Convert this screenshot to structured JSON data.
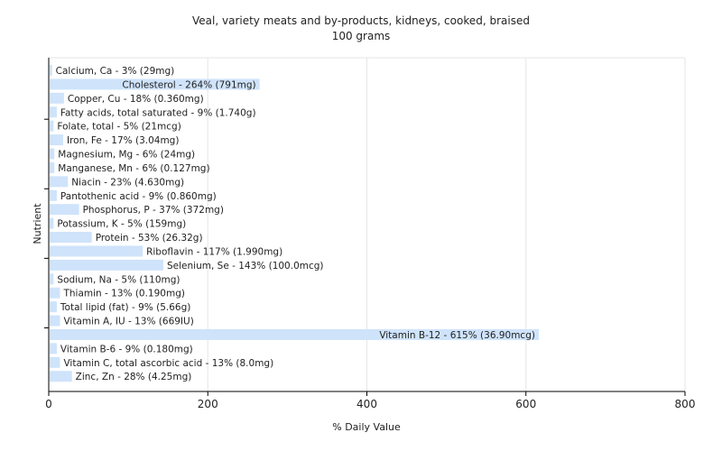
{
  "chart_data": {
    "type": "bar",
    "orientation": "horizontal",
    "title": "Veal, variety meats and by-products, kidneys, cooked, braised",
    "subtitle": "100 grams",
    "xlabel": "% Daily Value",
    "ylabel": "Nutrient",
    "xlim": [
      0,
      800
    ],
    "xticks": [
      "0",
      "200",
      "400",
      "600",
      "800"
    ],
    "grid": true,
    "bar_color": "#cfe3fb",
    "categories": [
      "Calcium, Ca",
      "Cholesterol",
      "Copper, Cu",
      "Fatty acids, total saturated",
      "Folate, total",
      "Iron, Fe",
      "Magnesium, Mg",
      "Manganese, Mn",
      "Niacin",
      "Pantothenic acid",
      "Phosphorus, P",
      "Potassium, K",
      "Protein",
      "Riboflavin",
      "Selenium, Se",
      "Sodium, Na",
      "Thiamin",
      "Total lipid (fat)",
      "Vitamin A, IU",
      "Vitamin B-12",
      "Vitamin B-6",
      "Vitamin C, total ascorbic acid",
      "Zinc, Zn"
    ],
    "values": [
      3,
      264,
      18,
      9,
      5,
      17,
      6,
      6,
      23,
      9,
      37,
      5,
      53,
      117,
      143,
      5,
      13,
      9,
      13,
      615,
      9,
      13,
      28
    ],
    "labels": [
      "Calcium, Ca - 3% (29mg)",
      "Cholesterol - 264% (791mg)",
      "Copper, Cu - 18% (0.360mg)",
      "Fatty acids, total saturated - 9% (1.740g)",
      "Folate, total - 5% (21mcg)",
      "Iron, Fe - 17% (3.04mg)",
      "Magnesium, Mg - 6% (24mg)",
      "Manganese, Mn - 6% (0.127mg)",
      "Niacin - 23% (4.630mg)",
      "Pantothenic acid - 9% (0.860mg)",
      "Phosphorus, P - 37% (372mg)",
      "Potassium, K - 5% (159mg)",
      "Protein - 53% (26.32g)",
      "Riboflavin - 117% (1.990mg)",
      "Selenium, Se - 143% (100.0mcg)",
      "Sodium, Na - 5% (110mg)",
      "Thiamin - 13% (0.190mg)",
      "Total lipid (fat) - 9% (5.66g)",
      "Vitamin A, IU - 13% (669IU)",
      "Vitamin B-12 - 615% (36.90mcg)",
      "Vitamin B-6 - 9% (0.180mg)",
      "Vitamin C, total ascorbic acid - 13% (8.0mg)",
      "Zinc, Zn - 28% (4.25mg)"
    ]
  }
}
